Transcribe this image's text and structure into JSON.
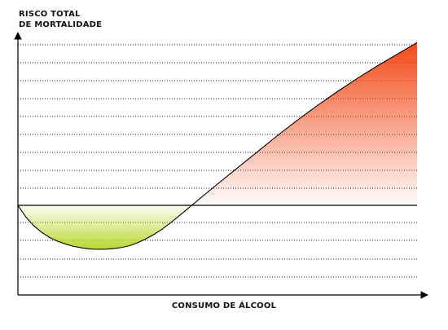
{
  "chart_data": {
    "type": "area",
    "ylabel_lines": [
      "RISCO TOTAL",
      "DE MORTALIDADE"
    ],
    "xlabel": "CONSUMO DE ÁLCOOL",
    "baseline": 0,
    "grid": "dotted-horizontal",
    "series": [
      {
        "x": [
          0,
          2,
          4,
          6,
          8,
          10,
          12,
          14,
          16,
          18,
          20,
          22,
          24,
          26,
          28,
          30,
          32,
          34,
          36,
          38,
          40,
          42,
          44,
          46,
          48,
          50,
          55,
          60,
          65,
          70,
          75,
          80,
          85,
          90,
          95,
          100
        ],
        "y": [
          0,
          -1.6,
          -2.8,
          -3.7,
          -4.4,
          -4.9,
          -5.3,
          -5.6,
          -5.8,
          -5.95,
          -6.0,
          -5.98,
          -5.9,
          -5.75,
          -5.5,
          -5.1,
          -4.6,
          -4.0,
          -3.3,
          -2.5,
          -1.6,
          -0.7,
          0.2,
          1.1,
          2.0,
          2.9,
          5.1,
          7.3,
          9.5,
          11.6,
          13.6,
          15.5,
          17.3,
          19.0,
          20.6,
          22.2
        ]
      }
    ],
    "colors": {
      "beneficial_fill": "#b9d830",
      "harmful_fill": "#f24a18",
      "grid": "#222222",
      "line": "#000000"
    }
  }
}
